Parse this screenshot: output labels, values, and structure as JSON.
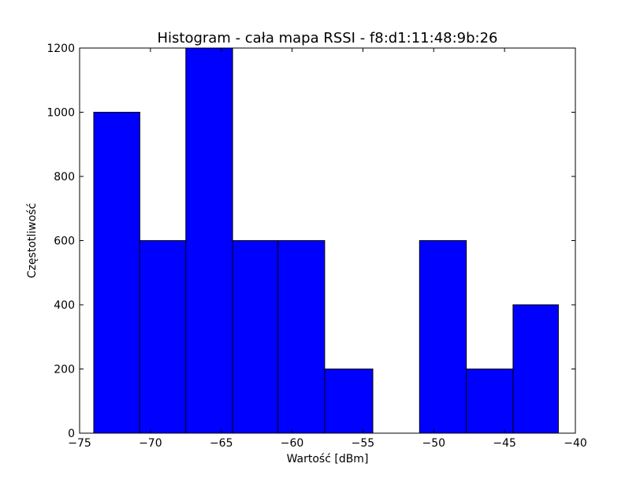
{
  "chart_data": {
    "type": "bar",
    "title": "Histogram - cała mapa RSSI - f8:d1:11:48:9b:26",
    "xlabel": "Wartość [dBm]",
    "ylabel": "Częstotliwość",
    "xlim": [
      -75,
      -40
    ],
    "ylim": [
      0,
      1200
    ],
    "xticks": [
      -75,
      -70,
      -65,
      -60,
      -55,
      -50,
      -45,
      -40
    ],
    "yticks": [
      0,
      200,
      400,
      600,
      800,
      1000,
      1200
    ],
    "xtick_labels": [
      "−75",
      "−70",
      "−65",
      "−60",
      "−55",
      "−50",
      "−45",
      "−40"
    ],
    "ytick_labels": [
      "0",
      "200",
      "400",
      "600",
      "800",
      "1000",
      "1200"
    ],
    "grid": false,
    "bar_color": "#0000ff",
    "edge_color": "#000000",
    "bins": [
      {
        "x0": -74.0,
        "x1": -70.75,
        "value": 1000
      },
      {
        "x0": -70.75,
        "x1": -67.5,
        "value": 600
      },
      {
        "x0": -67.5,
        "x1": -64.2,
        "value": 1200
      },
      {
        "x0": -64.2,
        "x1": -61.0,
        "value": 600
      },
      {
        "x0": -61.0,
        "x1": -57.7,
        "value": 600
      },
      {
        "x0": -57.7,
        "x1": -54.3,
        "value": 200
      },
      {
        "x0": -54.3,
        "x1": -51.0,
        "value": 0
      },
      {
        "x0": -51.0,
        "x1": -47.7,
        "value": 600
      },
      {
        "x0": -47.7,
        "x1": -44.4,
        "value": 200
      },
      {
        "x0": -44.4,
        "x1": -41.2,
        "value": 400
      }
    ]
  }
}
